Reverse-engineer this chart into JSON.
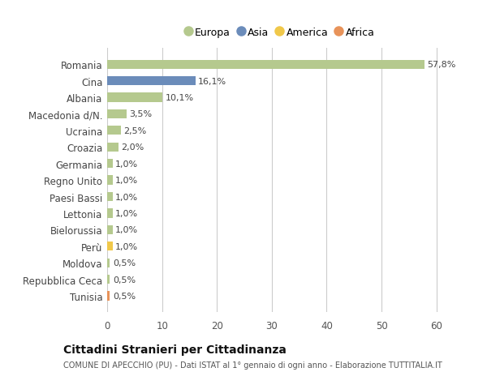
{
  "countries": [
    "Romania",
    "Cina",
    "Albania",
    "Macedonia d/N.",
    "Ucraina",
    "Croazia",
    "Germania",
    "Regno Unito",
    "Paesi Bassi",
    "Lettonia",
    "Bielorussia",
    "Perù",
    "Moldova",
    "Repubblica Ceca",
    "Tunisia"
  ],
  "values": [
    57.8,
    16.1,
    10.1,
    3.5,
    2.5,
    2.0,
    1.0,
    1.0,
    1.0,
    1.0,
    1.0,
    1.0,
    0.5,
    0.5,
    0.5
  ],
  "labels": [
    "57,8%",
    "16,1%",
    "10,1%",
    "3,5%",
    "2,5%",
    "2,0%",
    "1,0%",
    "1,0%",
    "1,0%",
    "1,0%",
    "1,0%",
    "1,0%",
    "0,5%",
    "0,5%",
    "0,5%"
  ],
  "continents": [
    "Europa",
    "Asia",
    "Europa",
    "Europa",
    "Europa",
    "Europa",
    "Europa",
    "Europa",
    "Europa",
    "Europa",
    "Europa",
    "America",
    "Europa",
    "Europa",
    "Africa"
  ],
  "continent_colors": {
    "Europa": "#b5c98e",
    "Asia": "#6b8cba",
    "America": "#f0c84a",
    "Africa": "#e8935a"
  },
  "legend_order": [
    "Europa",
    "Asia",
    "America",
    "Africa"
  ],
  "legend_colors": [
    "#b5c98e",
    "#6b8cba",
    "#f0c84a",
    "#e8935a"
  ],
  "bg_color": "#ffffff",
  "plot_bg_color": "#ffffff",
  "grid_color": "#cccccc",
  "title": "Cittadini Stranieri per Cittadinanza",
  "subtitle": "COMUNE DI APECCHIO (PU) - Dati ISTAT al 1° gennaio di ogni anno - Elaborazione TUTTITALIA.IT",
  "xlim": [
    0,
    63
  ],
  "xticks": [
    0,
    10,
    20,
    30,
    40,
    50,
    60
  ]
}
